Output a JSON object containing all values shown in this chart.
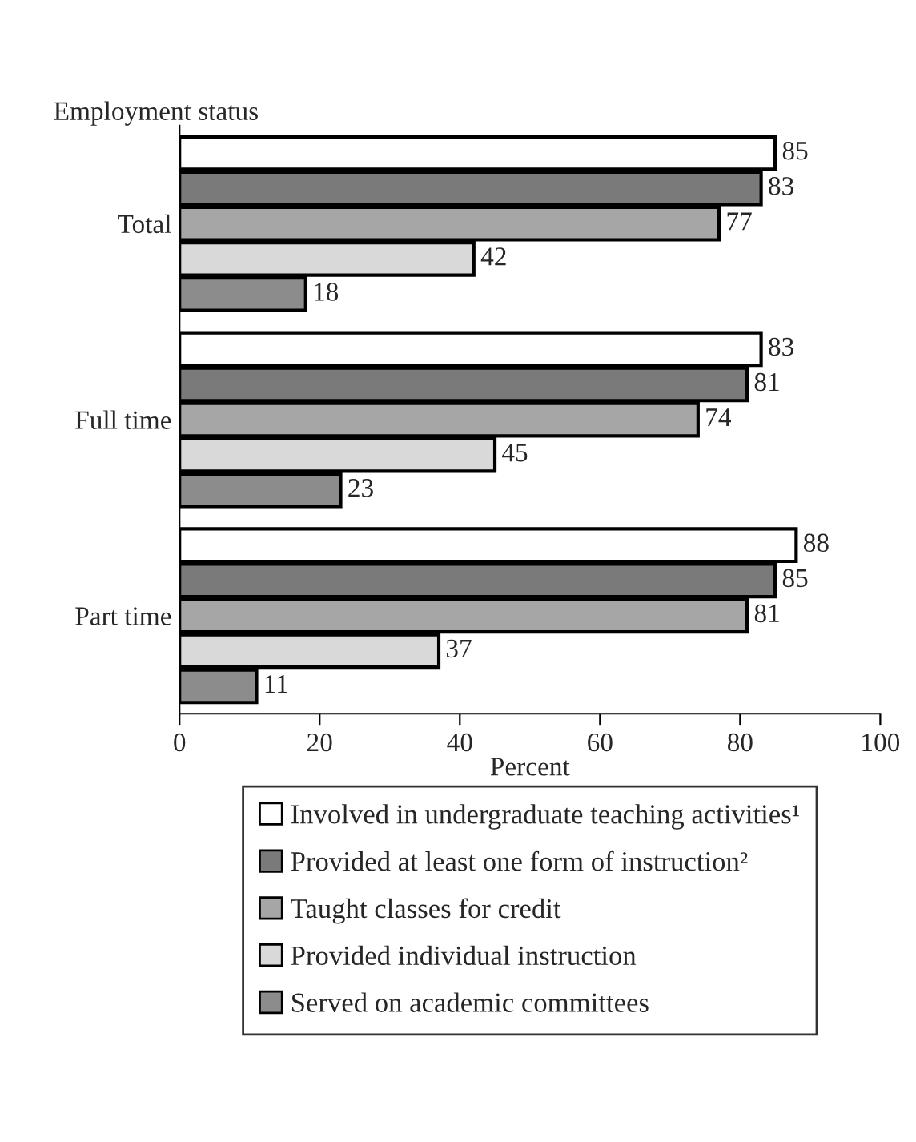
{
  "chart_data": {
    "type": "bar",
    "orientation": "horizontal",
    "ylabel": "Employment status",
    "xlabel": "Percent",
    "categories": [
      "Total",
      "Full time",
      "Part time"
    ],
    "series": [
      {
        "name": "Involved in undergraduate teaching activities¹",
        "color": "#ffffff",
        "values": [
          85,
          83,
          88
        ]
      },
      {
        "name": "Provided at least one form of instruction²",
        "color": "#7a7a7a",
        "values": [
          83,
          81,
          85
        ]
      },
      {
        "name": "Taught classes for credit",
        "color": "#a6a6a6",
        "values": [
          77,
          74,
          81
        ]
      },
      {
        "name": "Provided individual instruction",
        "color": "#d9d9d9",
        "values": [
          42,
          45,
          37
        ]
      },
      {
        "name": "Served on academic committees",
        "color": "#8c8c8c",
        "values": [
          18,
          23,
          11
        ]
      }
    ],
    "xlim": [
      0,
      100
    ],
    "xticks": [
      0,
      20,
      40,
      60,
      80,
      100
    ],
    "data_labels": true,
    "grid": false,
    "legend": "bottom"
  }
}
